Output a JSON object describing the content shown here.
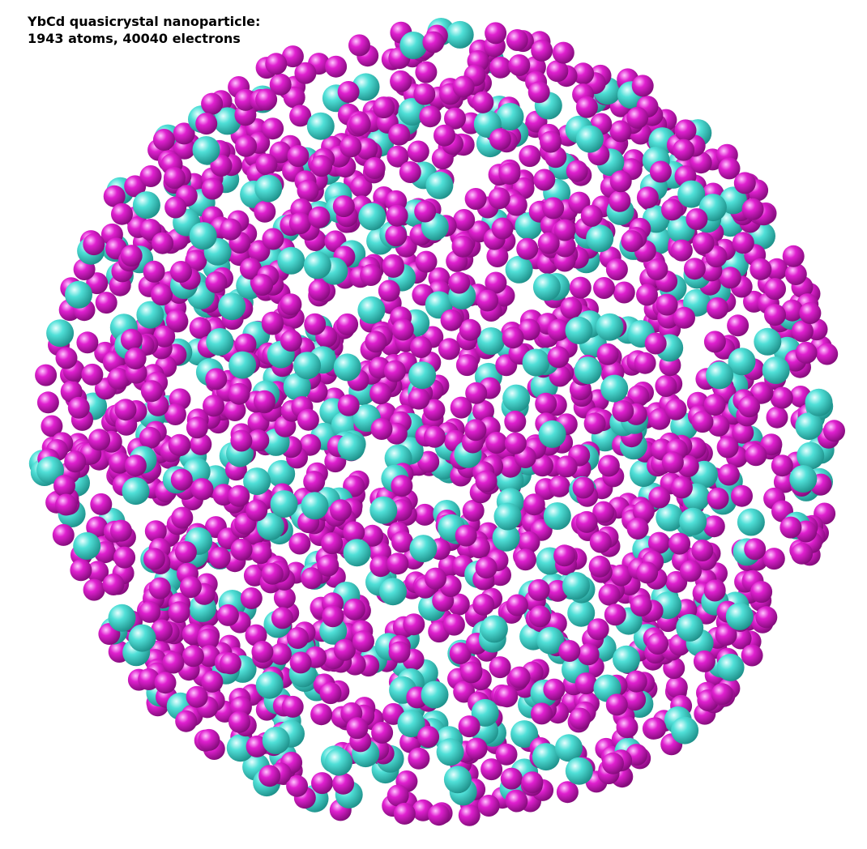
{
  "caption": {
    "line1": "YbCd quasicrystal nanoparticle:",
    "line2": "1943 atoms, 40040 electrons"
  },
  "atoms": {
    "count": 1943,
    "species": [
      {
        "element": "Cd",
        "color": "#e020d0",
        "highlight": "#ffc8ff",
        "shadow": "#7a0a72",
        "fraction": 0.82
      },
      {
        "element": "Yb",
        "color": "#50e0d8",
        "highlight": "#e8ffff",
        "shadow": "#1a8a84",
        "fraction": 0.18
      }
    ]
  }
}
